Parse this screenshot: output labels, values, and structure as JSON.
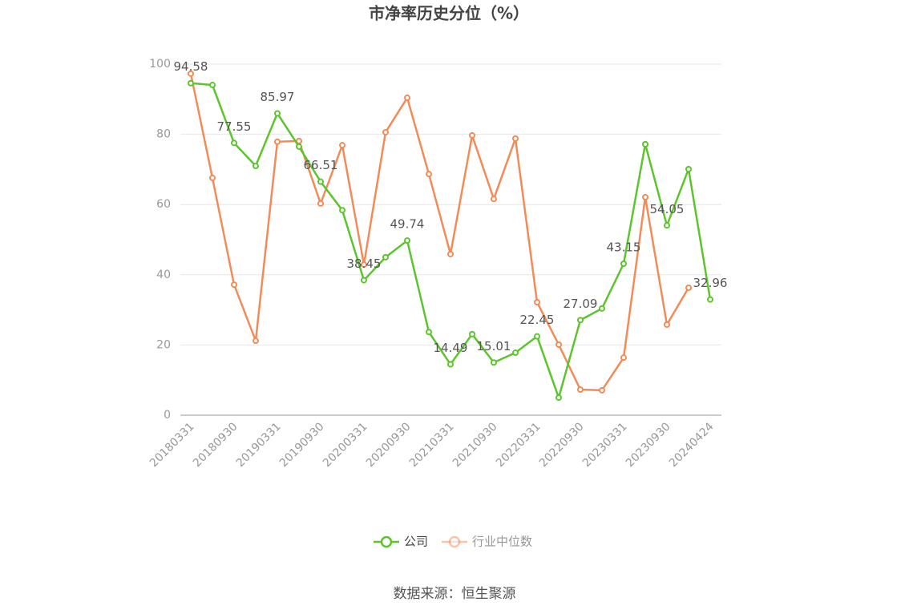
{
  "chart_data": {
    "type": "line",
    "title": "市净率历史分位（%）",
    "categories": [
      "20180331",
      null,
      "20180930",
      null,
      "20190331",
      null,
      "20190930",
      null,
      "20200331",
      null,
      "20200930",
      null,
      "20210331",
      null,
      "20210930",
      null,
      "20220331",
      null,
      "20220930",
      null,
      "20230331",
      null,
      "20230930",
      null,
      "20240424"
    ],
    "series": [
      {
        "name": "公司",
        "color": "#5cc52c",
        "values": [
          94.58,
          94.06,
          77.55,
          71.0,
          85.97,
          76.5,
          66.51,
          58.4,
          38.45,
          45.0,
          49.74,
          23.7,
          14.49,
          23.1,
          15.01,
          17.8,
          22.45,
          5.0,
          27.09,
          30.4,
          43.15,
          77.2,
          54.05,
          70.1,
          32.96
        ]
      },
      {
        "name": "行业中位数",
        "color": "#f28b58",
        "values": [
          97.3,
          67.6,
          37.2,
          21.2,
          77.9,
          78.1,
          60.3,
          76.9,
          42.9,
          80.6,
          90.4,
          68.7,
          45.9,
          79.7,
          61.6,
          78.8,
          32.2,
          20.1,
          7.3,
          7.1,
          16.4,
          62.1,
          25.8,
          36.3,
          null
        ]
      }
    ],
    "ylim": [
      0,
      100
    ],
    "yticks": [
      0,
      20,
      40,
      60,
      80,
      100
    ],
    "grid": true,
    "legend": "bottom",
    "source": "数据来源：恒生聚源"
  }
}
